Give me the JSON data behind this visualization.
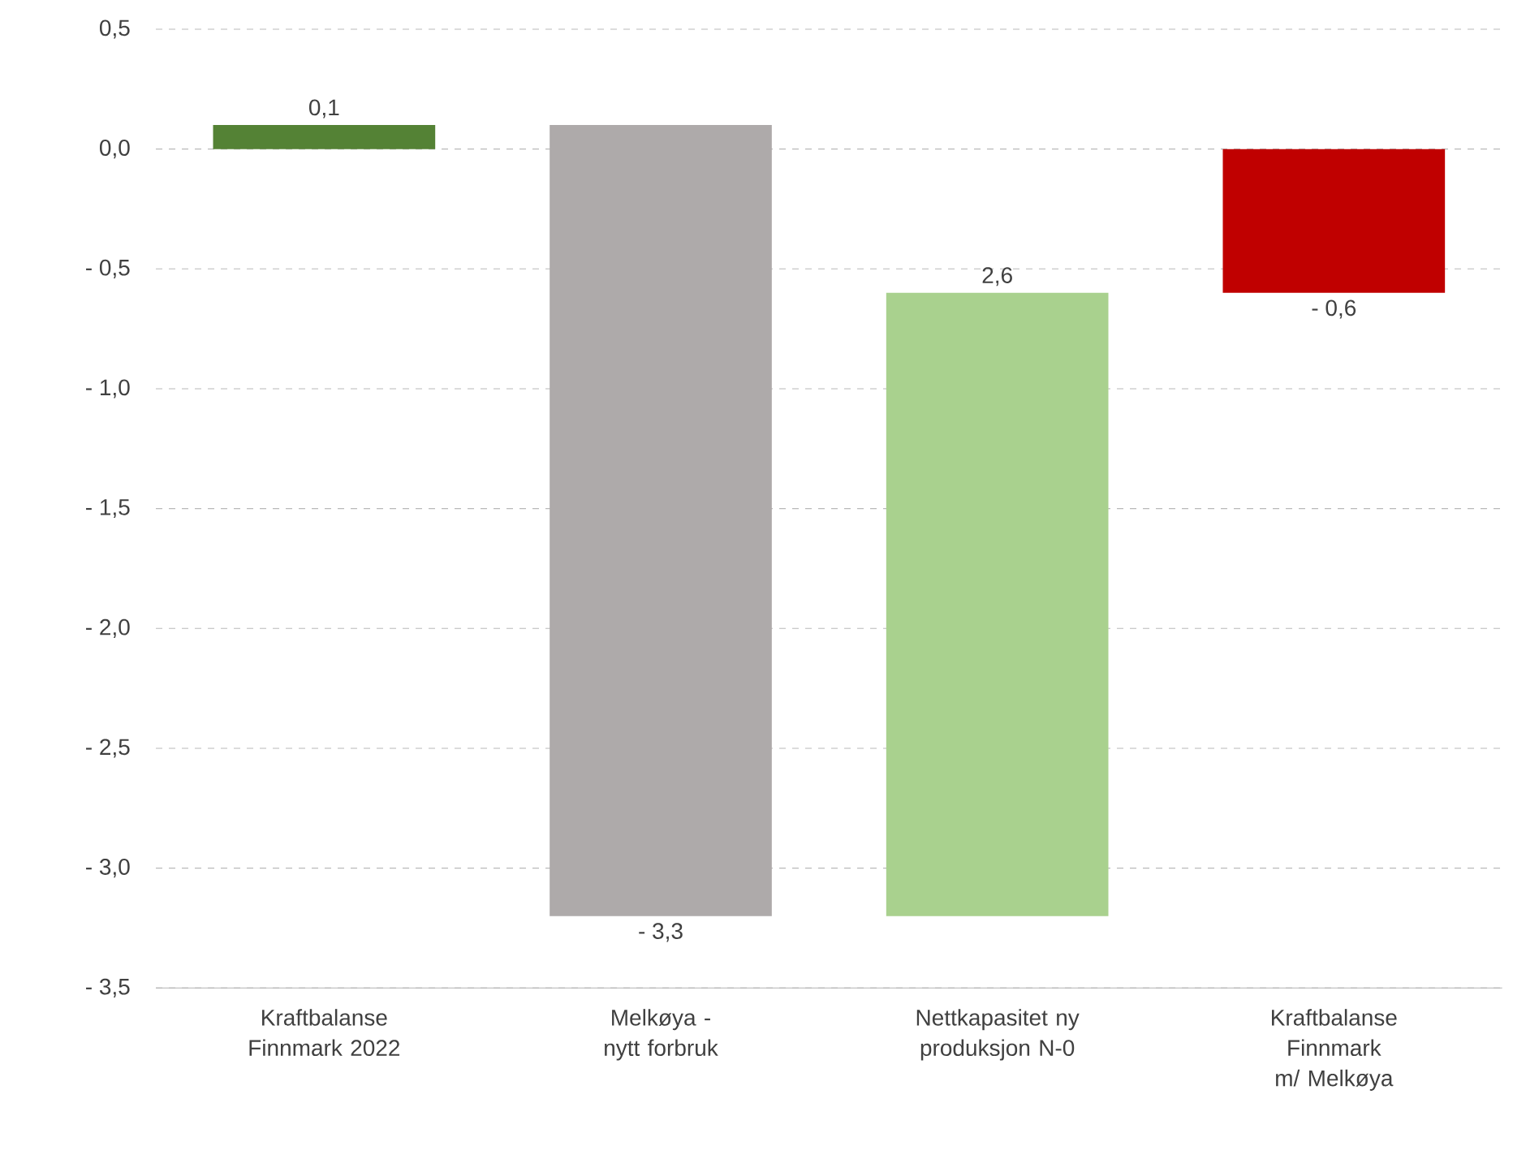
{
  "chart_data": {
    "type": "bar",
    "categories": [
      "Kraftbalanse Finnmark 2022",
      "Melkøya - nytt forbruk",
      "Nettkapasitet ny produksjon N-0",
      "Kraftbalanse Finnmark m/ Melkøya"
    ],
    "values": [
      0.1,
      -3.3,
      2.6,
      -0.6
    ],
    "base": [
      0,
      0.1,
      -3.2,
      0
    ],
    "colors": [
      "#548235",
      "#aeaaaa",
      "#a9d18e",
      "#c00000"
    ],
    "value_labels": [
      "0,1",
      "- 3,3",
      "2,6",
      "- 0,6"
    ],
    "ylim": [
      -3.5,
      0.5
    ],
    "yticks": [
      {
        "value": 0.5,
        "label": "0,5"
      },
      {
        "value": 0,
        "label": "0,0"
      },
      {
        "value": -0.5,
        "label": "- 0,5"
      },
      {
        "value": -1,
        "label": "- 1,0"
      },
      {
        "value": -1.5,
        "label": "- 1,5"
      },
      {
        "value": -2,
        "label": "- 2,0"
      },
      {
        "value": -2.5,
        "label": "- 2,5"
      },
      {
        "value": -3,
        "label": "- 3,0"
      },
      {
        "value": -3.5,
        "label": "- 3,5"
      }
    ],
    "grid": "y"
  }
}
